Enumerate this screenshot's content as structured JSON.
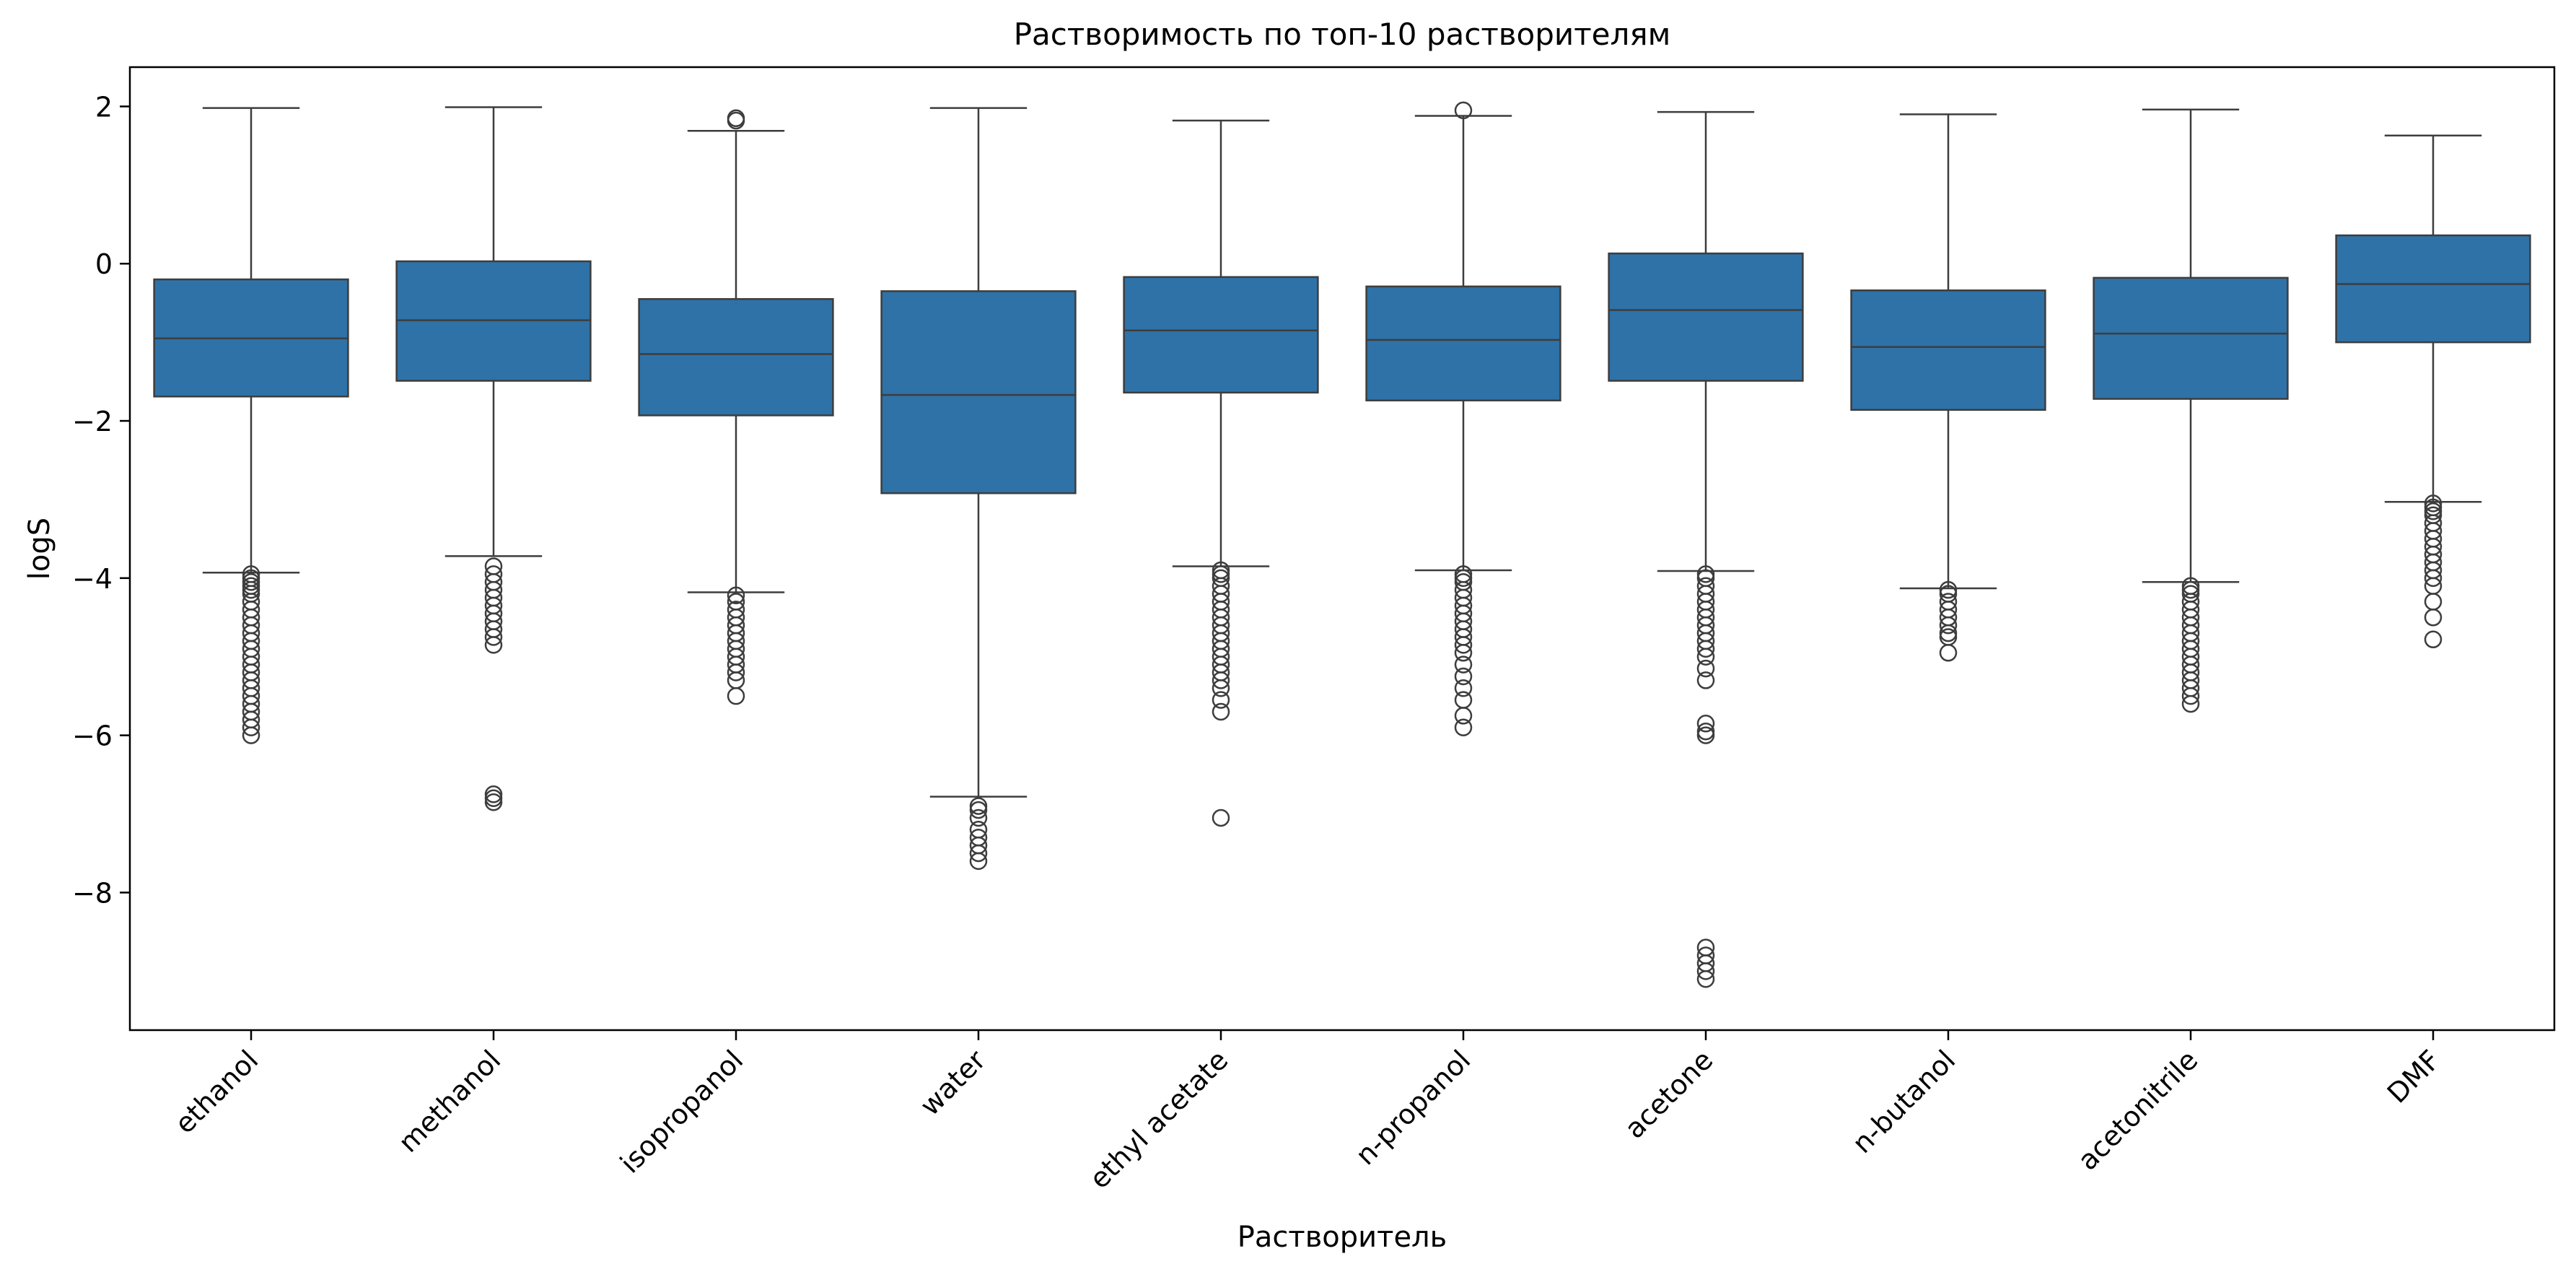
{
  "chart_data": {
    "type": "box",
    "title": "Растворимость по топ-10 растворителям",
    "xlabel": "Растворитель",
    "ylabel": "logS",
    "ylim": [
      -9.75,
      2.5
    ],
    "yticks": [
      2,
      0,
      -2,
      -4,
      -6,
      -8
    ],
    "ytick_labels": [
      "2",
      "0",
      "−2",
      "−4",
      "−6",
      "−8"
    ],
    "grid": false,
    "legend": "none",
    "box_color": "#2e72a8",
    "line_color": "#3d3d3d",
    "categories": [
      "ethanol",
      "methanol",
      "isopropanol",
      "water",
      "ethyl acetate",
      "n-propanol",
      "acetone",
      "n-butanol",
      "acetonitrile",
      "DMF"
    ],
    "boxes": [
      {
        "name": "ethanol",
        "whisker_low": -3.93,
        "q1": -1.69,
        "median": -0.95,
        "q3": -0.2,
        "whisker_high": 1.98,
        "outliers": [
          -3.95,
          -4.0,
          -4.05,
          -4.1,
          -4.15,
          -4.2,
          -4.3,
          -4.4,
          -4.5,
          -4.6,
          -4.7,
          -4.8,
          -4.9,
          -5.0,
          -5.1,
          -5.2,
          -5.3,
          -5.4,
          -5.5,
          -5.6,
          -5.7,
          -5.8,
          -5.9,
          -6.0
        ]
      },
      {
        "name": "methanol",
        "whisker_low": -3.72,
        "q1": -1.49,
        "median": -0.72,
        "q3": 0.03,
        "whisker_high": 1.99,
        "outliers": [
          -3.85,
          -3.95,
          -4.05,
          -4.15,
          -4.25,
          -4.35,
          -4.45,
          -4.55,
          -4.65,
          -4.75,
          -4.85,
          -6.75,
          -6.8,
          -6.85
        ]
      },
      {
        "name": "isopropanol",
        "whisker_low": -4.18,
        "q1": -1.93,
        "median": -1.15,
        "q3": -0.45,
        "whisker_high": 1.69,
        "outliers": [
          1.82,
          1.85,
          -4.22,
          -4.3,
          -4.4,
          -4.5,
          -4.6,
          -4.7,
          -4.8,
          -4.9,
          -5.0,
          -5.1,
          -5.2,
          -5.3,
          -5.5
        ]
      },
      {
        "name": "water",
        "whisker_low": -6.78,
        "q1": -2.92,
        "median": -1.67,
        "q3": -0.35,
        "whisker_high": 1.98,
        "outliers": [
          -6.9,
          -6.95,
          -7.05,
          -7.2,
          -7.3,
          -7.4,
          -7.5,
          -7.6
        ]
      },
      {
        "name": "ethyl acetate",
        "whisker_low": -3.85,
        "q1": -1.64,
        "median": -0.85,
        "q3": -0.17,
        "whisker_high": 1.82,
        "outliers": [
          -3.9,
          -3.95,
          -4.0,
          -4.1,
          -4.2,
          -4.3,
          -4.4,
          -4.5,
          -4.6,
          -4.7,
          -4.8,
          -4.9,
          -5.0,
          -5.1,
          -5.2,
          -5.3,
          -5.4,
          -5.55,
          -5.7,
          -7.05
        ]
      },
      {
        "name": "n-propanol",
        "whisker_low": -3.9,
        "q1": -1.74,
        "median": -0.97,
        "q3": -0.29,
        "whisker_high": 1.88,
        "outliers": [
          1.95,
          -3.95,
          -4.0,
          -4.05,
          -4.15,
          -4.25,
          -4.35,
          -4.45,
          -4.55,
          -4.65,
          -4.75,
          -4.85,
          -4.95,
          -5.1,
          -5.25,
          -5.4,
          -5.55,
          -5.75,
          -5.9
        ]
      },
      {
        "name": "acetone",
        "whisker_low": -3.91,
        "q1": -1.49,
        "median": -0.59,
        "q3": 0.13,
        "whisker_high": 1.93,
        "outliers": [
          -3.95,
          -4.0,
          -4.1,
          -4.2,
          -4.3,
          -4.4,
          -4.5,
          -4.6,
          -4.7,
          -4.8,
          -4.9,
          -5.0,
          -5.15,
          -5.3,
          -5.85,
          -5.95,
          -6.0,
          -8.7,
          -8.8,
          -8.9,
          -9.0,
          -9.1
        ]
      },
      {
        "name": "n-butanol",
        "whisker_low": -4.13,
        "q1": -1.86,
        "median": -1.06,
        "q3": -0.34,
        "whisker_high": 1.9,
        "outliers": [
          -4.15,
          -4.2,
          -4.3,
          -4.4,
          -4.5,
          -4.6,
          -4.7,
          -4.75,
          -4.95
        ]
      },
      {
        "name": "acetonitrile",
        "whisker_low": -4.05,
        "q1": -1.72,
        "median": -0.89,
        "q3": -0.18,
        "whisker_high": 1.96,
        "outliers": [
          -4.1,
          -4.15,
          -4.2,
          -4.3,
          -4.4,
          -4.5,
          -4.6,
          -4.7,
          -4.8,
          -4.9,
          -5.0,
          -5.1,
          -5.2,
          -5.3,
          -5.4,
          -5.5,
          -5.6
        ]
      },
      {
        "name": "DMF",
        "whisker_low": -3.03,
        "q1": -1.0,
        "median": -0.26,
        "q3": 0.36,
        "whisker_high": 1.63,
        "outliers": [
          -3.05,
          -3.1,
          -3.15,
          -3.2,
          -3.3,
          -3.4,
          -3.5,
          -3.6,
          -3.7,
          -3.8,
          -3.9,
          -4.0,
          -4.1,
          -4.3,
          -4.5,
          -4.78
        ]
      }
    ]
  }
}
